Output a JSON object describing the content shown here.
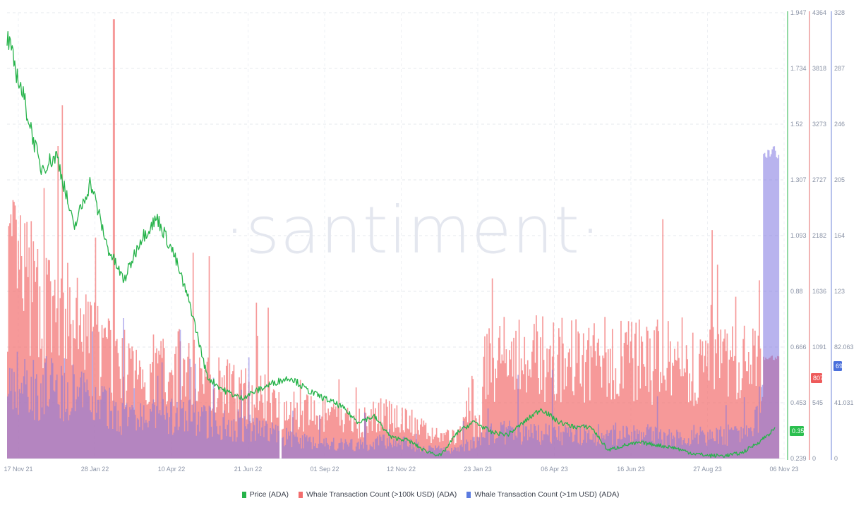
{
  "watermark": "·santiment·",
  "chart_data": {
    "type": "line+bar",
    "title": "",
    "x_ticks": [
      "17 Nov 21",
      "28 Jan 22",
      "10 Apr 22",
      "21 Jun 22",
      "01 Sep 22",
      "12 Nov 22",
      "23 Jan 23",
      "06 Apr 23",
      "16 Jun 23",
      "27 Aug 23",
      "06 Nov 23"
    ],
    "x_range": [
      "17 Nov 21",
      "06 Nov 23"
    ],
    "grid": true,
    "legend_position": "bottom",
    "axes": {
      "price": {
        "label": "Price (ADA)",
        "color": "#26b34a",
        "ticks": [
          "1.947",
          "1.734",
          "1.52",
          "1.307",
          "1.093",
          "0.88",
          "0.666",
          "0.453",
          "0.239"
        ],
        "range": [
          0.239,
          1.947
        ],
        "current_value": "0.352"
      },
      "whale_100k": {
        "label": "Whale Transaction Count (>100k USD) (ADA)",
        "color": "#f26d6d",
        "ticks": [
          "4364",
          "3818",
          "3273",
          "2727",
          "2182",
          "1636",
          "1091",
          "545",
          "0"
        ],
        "range": [
          0,
          4364
        ],
        "current_value": "807"
      },
      "whale_1m": {
        "label": "Whale Transaction Count (>1m USD) (ADA)",
        "color": "#5b7be0",
        "ticks": [
          "328",
          "287",
          "246",
          "205",
          "164",
          "123",
          "82.063",
          "41.031",
          "0"
        ],
        "range": [
          0,
          328
        ],
        "current_value": "69"
      }
    },
    "series": [
      {
        "name": "Price (ADA)",
        "type": "line",
        "axis": "price",
        "x": [
          "17 Nov 21",
          "01 Dec 21",
          "15 Dec 21",
          "01 Jan 22",
          "15 Jan 22",
          "28 Jan 22",
          "15 Feb 22",
          "01 Mar 22",
          "15 Mar 22",
          "01 Apr 22",
          "10 Apr 22",
          "01 May 22",
          "15 May 22",
          "01 Jun 22",
          "21 Jun 22",
          "15 Jul 22",
          "01 Aug 22",
          "15 Aug 22",
          "01 Sep 22",
          "15 Sep 22",
          "01 Oct 22",
          "15 Oct 22",
          "01 Nov 22",
          "12 Nov 22",
          "01 Dec 22",
          "15 Dec 22",
          "01 Jan 23",
          "23 Jan 23",
          "15 Feb 23",
          "01 Mar 23",
          "15 Mar 23",
          "06 Apr 23",
          "15 Apr 23",
          "01 May 23",
          "15 May 23",
          "01 Jun 23",
          "16 Jun 23",
          "01 Jul 23",
          "15 Jul 23",
          "01 Aug 23",
          "15 Aug 23",
          "27 Aug 23",
          "15 Sep 23",
          "01 Oct 23",
          "15 Oct 23",
          "01 Nov 23",
          "06 Nov 23"
        ],
        "values": [
          1.85,
          1.62,
          1.35,
          1.4,
          1.12,
          1.3,
          1.05,
          0.92,
          1.08,
          1.16,
          1.02,
          0.82,
          0.55,
          0.5,
          0.47,
          0.5,
          0.53,
          0.55,
          0.5,
          0.47,
          0.44,
          0.38,
          0.4,
          0.32,
          0.31,
          0.27,
          0.25,
          0.34,
          0.38,
          0.34,
          0.33,
          0.38,
          0.43,
          0.38,
          0.36,
          0.36,
          0.27,
          0.29,
          0.3,
          0.29,
          0.28,
          0.26,
          0.25,
          0.25,
          0.26,
          0.3,
          0.352
        ]
      },
      {
        "name": "Whale Transaction Count (>100k USD) (ADA)",
        "type": "bar",
        "axis": "whale_100k",
        "x": [
          "Nov 21",
          "Dec 21",
          "Jan 22",
          "Feb 22",
          "Mar 22",
          "Apr 22",
          "May 22",
          "Jun 22",
          "Jul 22",
          "Aug 22",
          "Sep 22",
          "Oct 22",
          "Nov 22",
          "Dec 22",
          "Jan 23",
          "Feb 23",
          "Mar 23",
          "Apr 23",
          "May 23",
          "Jun 23",
          "Jul 23",
          "Aug 23",
          "Sep 23",
          "Oct 23",
          "Nov 23"
        ],
        "values": [
          1900,
          1500,
          1300,
          1000,
          800,
          900,
          850,
          650,
          600,
          450,
          400,
          350,
          450,
          250,
          200,
          1000,
          980,
          970,
          960,
          980,
          950,
          920,
          900,
          920,
          807
        ],
        "peak": {
          "x": "28 Jan 22",
          "value": 4300
        }
      },
      {
        "name": "Whale Transaction Count (>1m USD) (ADA)",
        "type": "bar",
        "axis": "whale_1m",
        "x": [
          "Nov 21",
          "Dec 21",
          "Jan 22",
          "Feb 22",
          "Mar 22",
          "Apr 22",
          "May 22",
          "Jun 22",
          "Jul 22",
          "Aug 22",
          "Sep 22",
          "Oct 22",
          "Nov 22",
          "Dec 22",
          "Jan 23",
          "Feb 23",
          "Mar 23",
          "Apr 23",
          "May 23",
          "Jun 23",
          "Jul 23",
          "Aug 23",
          "Sep 23",
          "Oct 23",
          "Nov 23"
        ],
        "values": [
          60,
          55,
          50,
          40,
          30,
          32,
          30,
          25,
          22,
          14,
          12,
          10,
          14,
          8,
          6,
          20,
          20,
          19,
          18,
          19,
          18,
          18,
          17,
          18,
          69
        ],
        "peak": {
          "x": "06 Nov 23",
          "value": 228
        }
      }
    ]
  },
  "legend": {
    "items": [
      {
        "label": "Price (ADA)",
        "color": "#26b34a"
      },
      {
        "label": "Whale Transaction Count (>100k USD) (ADA)",
        "color": "#f26d6d"
      },
      {
        "label": "Whale Transaction Count (>1m USD) (ADA)",
        "color": "#5b7be0"
      }
    ]
  }
}
